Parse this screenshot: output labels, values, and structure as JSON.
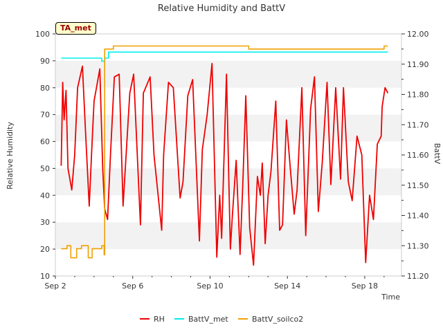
{
  "station_tag": "TA_met",
  "chart_data": {
    "type": "line",
    "title": "Relative Humidity and BattV",
    "xlabel": "Time",
    "ylabel": "Relative Humidity",
    "y2label": "BattV",
    "xlim": [
      0,
      17.9
    ],
    "ylim": [
      10,
      100
    ],
    "y2lim": [
      11.2,
      12.0
    ],
    "x_ticks": [
      {
        "x": 0,
        "label": "Sep 2"
      },
      {
        "x": 4,
        "label": "Sep 6"
      },
      {
        "x": 8,
        "label": "Sep 10"
      },
      {
        "x": 12,
        "label": "Sep 14"
      },
      {
        "x": 16,
        "label": "Sep 18"
      }
    ],
    "y_ticks": [
      10,
      20,
      30,
      40,
      50,
      60,
      70,
      80,
      90,
      100
    ],
    "y2_ticks": [
      "11.20",
      "11.30",
      "11.40",
      "11.50",
      "11.60",
      "11.70",
      "11.80",
      "11.90",
      "12.00"
    ],
    "legend_position": "bottom-center",
    "grid": "alternating horizontal bands",
    "series": [
      {
        "name": "RH",
        "axis": "left",
        "color": "#ee0000",
        "x": [
          0.3,
          0.38,
          0.45,
          0.55,
          0.65,
          0.85,
          1.0,
          1.15,
          1.4,
          1.55,
          1.75,
          1.9,
          2.0,
          2.3,
          2.45,
          2.55,
          2.7,
          2.85,
          3.05,
          3.3,
          3.5,
          3.85,
          4.05,
          4.4,
          4.55,
          4.9,
          5.1,
          5.5,
          5.6,
          5.85,
          6.1,
          6.45,
          6.6,
          6.85,
          7.1,
          7.45,
          7.6,
          7.85,
          8.1,
          8.35,
          8.5,
          8.6,
          8.85,
          9.05,
          9.15,
          9.35,
          9.55,
          9.7,
          9.85,
          10.05,
          10.25,
          10.45,
          10.6,
          10.7,
          10.85,
          11.0,
          11.15,
          11.4,
          11.6,
          11.75,
          11.95,
          12.15,
          12.35,
          12.5,
          12.75,
          12.95,
          13.2,
          13.4,
          13.6,
          13.8,
          14.05,
          14.25,
          14.5,
          14.75,
          14.9,
          15.15,
          15.35,
          15.6,
          15.85,
          16.05,
          16.25,
          16.45,
          16.65,
          16.85,
          16.9,
          17.05,
          17.2
        ],
        "y": [
          51,
          82,
          68,
          79,
          50,
          42,
          55,
          80,
          88,
          65,
          36,
          60,
          75,
          87,
          50,
          35,
          31,
          55,
          84,
          85,
          36,
          78,
          85,
          29,
          78,
          84,
          55,
          27,
          55,
          82,
          80,
          39,
          45,
          77,
          83,
          23,
          57,
          70,
          89,
          17,
          40,
          24,
          85,
          20,
          32,
          53,
          18,
          45,
          77,
          28,
          14,
          47,
          40,
          52,
          22,
          40,
          49,
          75,
          27,
          29,
          68,
          50,
          33,
          42,
          80,
          25,
          72,
          84,
          34,
          52,
          82,
          44,
          80,
          46,
          80,
          45,
          38,
          62,
          55,
          15,
          40,
          31,
          59,
          62,
          73,
          80,
          78
        ]
      },
      {
        "name": "BattV_met",
        "axis": "right",
        "color": "#00eeee",
        "x": [
          0.3,
          2.4,
          2.55,
          2.75,
          17.2
        ],
        "y": [
          11.92,
          11.91,
          11.92,
          11.94,
          11.94
        ]
      },
      {
        "name": "BattV_soilco2",
        "axis": "right",
        "color": "#f0a000",
        "x": [
          0.3,
          0.6,
          0.8,
          1.1,
          1.35,
          1.7,
          1.9,
          2.15,
          2.4,
          2.52,
          2.55,
          2.75,
          3.0,
          4.0,
          6.0,
          8.0,
          10.0,
          12.0,
          14.0,
          16.0,
          17.0,
          17.2
        ],
        "y": [
          11.29,
          11.3,
          11.26,
          11.29,
          11.3,
          11.26,
          11.29,
          11.29,
          11.3,
          11.27,
          11.95,
          11.95,
          11.96,
          11.96,
          11.96,
          11.96,
          11.95,
          11.95,
          11.95,
          11.95,
          11.96,
          11.96
        ]
      }
    ]
  }
}
